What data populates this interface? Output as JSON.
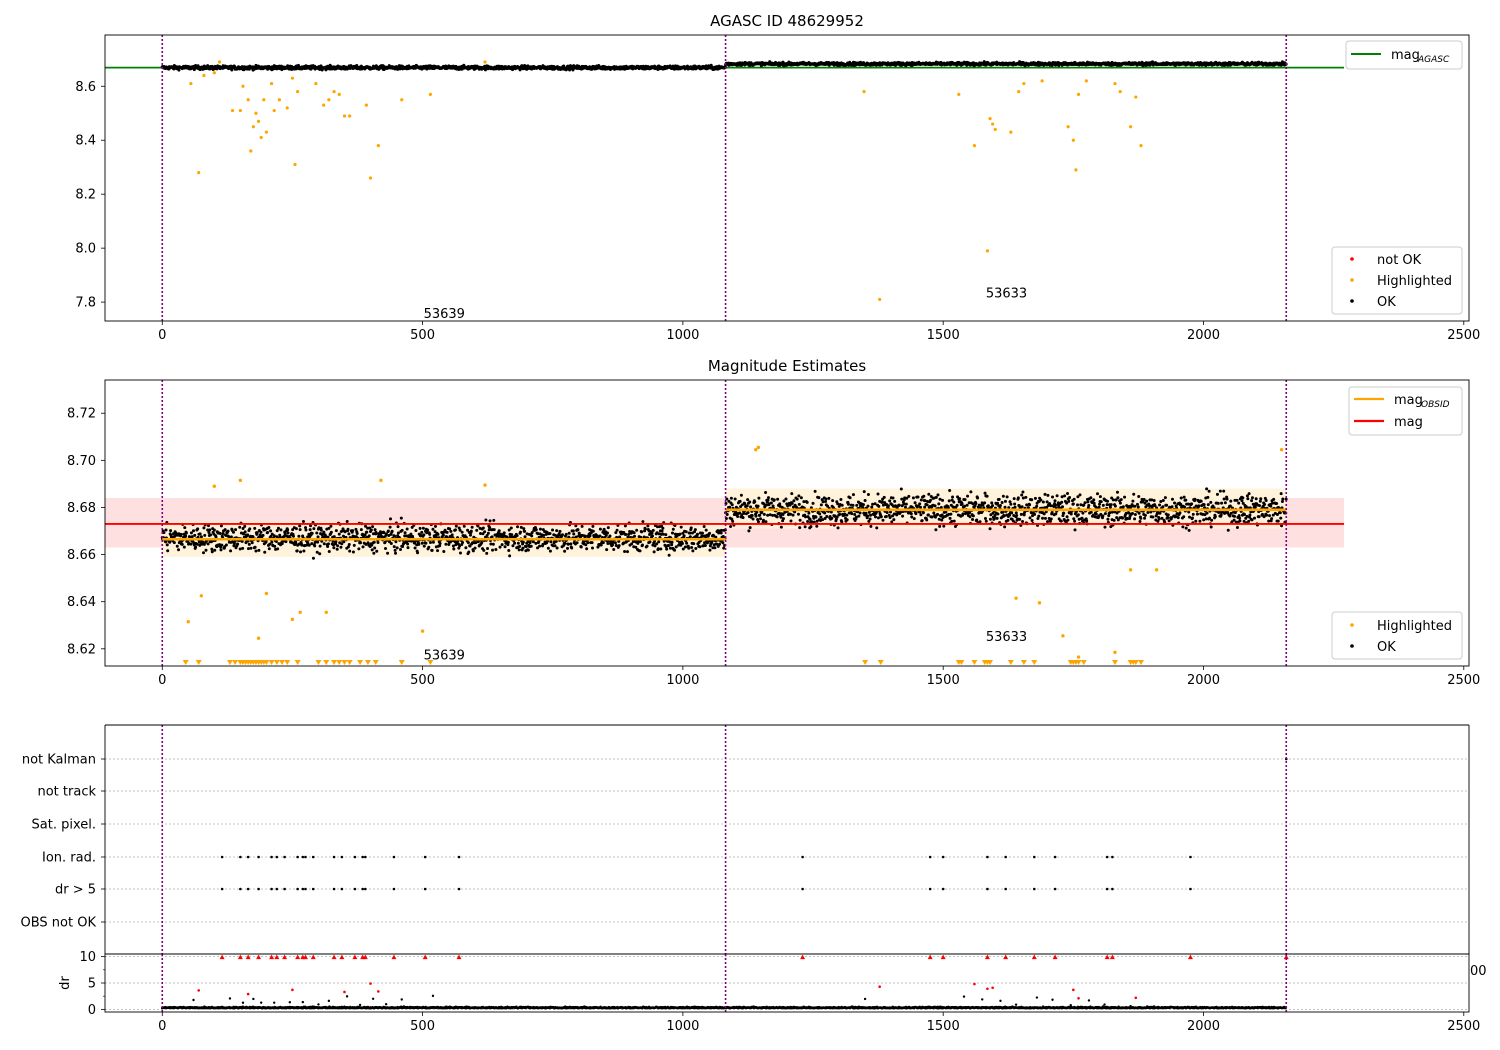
{
  "chart_data": [
    {
      "type": "scatter",
      "title": "AGASC ID 48629952",
      "xlim": [
        -110,
        2510
      ],
      "ylim": [
        7.73,
        8.79
      ],
      "xticks": [
        0,
        500,
        1000,
        1500,
        2000,
        2500
      ],
      "yticks": [
        7.8,
        8.0,
        8.2,
        8.4,
        8.6
      ],
      "obsid_boundaries": [
        0,
        1082,
        2159
      ],
      "obsid_labels": [
        {
          "text": "53639",
          "x": 500,
          "y": 7.76
        },
        {
          "text": "53633",
          "x": 1580,
          "y": 7.835
        }
      ],
      "legend_lines": [
        {
          "label": "mag",
          "sub": "AGASC",
          "color": "#008000"
        }
      ],
      "legend_points": [
        {
          "label": "not OK",
          "color": "#ff0000"
        },
        {
          "label": "Highlighted",
          "color": "#ffa500"
        },
        {
          "label": "OK",
          "color": "#000000"
        }
      ],
      "mag_agasc": 8.669,
      "ok_band": [
        {
          "x0": 0,
          "x1": 1082,
          "center": 8.669,
          "spread": 0.012
        },
        {
          "x0": 1082,
          "x1": 2159,
          "center": 8.683,
          "spread": 0.01
        }
      ],
      "highlighted_points": [
        [
          55,
          8.61
        ],
        [
          70,
          8.28
        ],
        [
          80,
          8.64
        ],
        [
          100,
          8.65
        ],
        [
          110,
          8.69
        ],
        [
          135,
          8.51
        ],
        [
          150,
          8.51
        ],
        [
          155,
          8.6
        ],
        [
          165,
          8.55
        ],
        [
          170,
          8.36
        ],
        [
          175,
          8.45
        ],
        [
          180,
          8.5
        ],
        [
          185,
          8.47
        ],
        [
          190,
          8.41
        ],
        [
          195,
          8.55
        ],
        [
          200,
          8.43
        ],
        [
          210,
          8.61
        ],
        [
          215,
          8.51
        ],
        [
          225,
          8.55
        ],
        [
          240,
          8.52
        ],
        [
          250,
          8.63
        ],
        [
          255,
          8.31
        ],
        [
          260,
          8.58
        ],
        [
          295,
          8.61
        ],
        [
          310,
          8.53
        ],
        [
          320,
          8.55
        ],
        [
          330,
          8.58
        ],
        [
          340,
          8.57
        ],
        [
          350,
          8.49
        ],
        [
          360,
          8.49
        ],
        [
          392,
          8.53
        ],
        [
          400,
          8.26
        ],
        [
          415,
          8.38
        ],
        [
          460,
          8.55
        ],
        [
          515,
          8.57
        ],
        [
          620,
          8.69
        ],
        [
          1348,
          8.58
        ],
        [
          1378,
          7.81
        ],
        [
          1530,
          8.57
        ],
        [
          1560,
          8.38
        ],
        [
          1585,
          7.99
        ],
        [
          1590,
          8.48
        ],
        [
          1595,
          8.46
        ],
        [
          1600,
          8.44
        ],
        [
          1630,
          8.43
        ],
        [
          1645,
          8.58
        ],
        [
          1655,
          8.61
        ],
        [
          1690,
          8.62
        ],
        [
          1740,
          8.45
        ],
        [
          1750,
          8.4
        ],
        [
          1755,
          8.29
        ],
        [
          1760,
          8.57
        ],
        [
          1775,
          8.62
        ],
        [
          1830,
          8.61
        ],
        [
          1840,
          8.58
        ],
        [
          1860,
          8.45
        ],
        [
          1870,
          8.56
        ],
        [
          1880,
          8.38
        ]
      ]
    },
    {
      "type": "scatter",
      "title": "Magnitude Estimates",
      "xlim": [
        -110,
        2510
      ],
      "ylim": [
        8.6127,
        8.7341
      ],
      "xticks": [
        0,
        500,
        1000,
        1500,
        2000,
        2500
      ],
      "yticks": [
        8.62,
        8.64,
        8.66,
        8.68,
        8.7,
        8.72
      ],
      "obsid_boundaries": [
        0,
        1082,
        2159
      ],
      "obsid_labels": [
        {
          "text": "53639",
          "x": 500,
          "y": 8.6175
        },
        {
          "text": "53633",
          "x": 1580,
          "y": 8.6255
        }
      ],
      "legend_lines": [
        {
          "label": "mag",
          "sub": "OBSID",
          "color": "#ffa500"
        },
        {
          "label": "mag",
          "sub": "",
          "color": "#ff0000"
        }
      ],
      "legend_points": [
        {
          "label": "Highlighted",
          "color": "#ffa500"
        },
        {
          "label": "OK",
          "color": "#000000"
        }
      ],
      "mag": 8.673,
      "mag_band": [
        8.663,
        8.684
      ],
      "mag_obsid": [
        {
          "x0": 0,
          "x1": 1082,
          "value": 8.6665,
          "band": [
            8.659,
            8.674
          ]
        },
        {
          "x0": 1082,
          "x1": 2159,
          "value": 8.679,
          "band": [
            8.671,
            8.688
          ]
        }
      ],
      "ok_band": [
        {
          "x0": 0,
          "x1": 1082,
          "center": 8.667,
          "spread": 0.007
        },
        {
          "x0": 1082,
          "x1": 2159,
          "center": 8.679,
          "spread": 0.008
        }
      ],
      "highlighted_points": [
        [
          50,
          8.6315
        ],
        [
          75,
          8.6425
        ],
        [
          100,
          8.689
        ],
        [
          150,
          8.6915
        ],
        [
          185,
          8.6245
        ],
        [
          200,
          8.6435
        ],
        [
          250,
          8.6325
        ],
        [
          265,
          8.6355
        ],
        [
          315,
          8.6355
        ],
        [
          420,
          8.6915
        ],
        [
          500,
          8.6275
        ],
        [
          620,
          8.6895
        ],
        [
          1140,
          8.7045
        ],
        [
          1145,
          8.7055
        ],
        [
          1640,
          8.6415
        ],
        [
          1685,
          8.6395
        ],
        [
          1730,
          8.6255
        ],
        [
          1760,
          8.6165
        ],
        [
          1830,
          8.6185
        ],
        [
          1860,
          8.6535
        ],
        [
          1910,
          8.6535
        ],
        [
          2150,
          8.7045
        ]
      ],
      "clipped_markers_x": [
        45,
        70,
        130,
        140,
        150,
        155,
        160,
        165,
        170,
        175,
        180,
        185,
        190,
        195,
        200,
        210,
        220,
        230,
        240,
        260,
        300,
        315,
        330,
        340,
        350,
        360,
        380,
        395,
        410,
        460,
        515,
        1350,
        1380,
        1530,
        1535,
        1560,
        1580,
        1585,
        1590,
        1630,
        1655,
        1675,
        1745,
        1750,
        1755,
        1760,
        1770,
        1830,
        1860,
        1865,
        1870,
        1880
      ]
    },
    {
      "type": "scatter",
      "title": "",
      "xlim": [
        -110,
        2510
      ],
      "categories": [
        "not Kalman",
        "not track",
        "Sat. pixel.",
        "Ion. rad.",
        "dr > 5",
        "OBS not OK"
      ],
      "obsid_boundaries": [
        0,
        1082,
        2159
      ],
      "flag_x": [
        115,
        150,
        165,
        185,
        210,
        220,
        235,
        260,
        270,
        275,
        290,
        330,
        345,
        370,
        385,
        390,
        445,
        505,
        570,
        1230,
        1475,
        1500,
        1585,
        1620,
        1675,
        1715,
        1815,
        1825,
        1975
      ],
      "stray_labels": [
        "00"
      ]
    },
    {
      "type": "scatter",
      "title": "",
      "xlim": [
        -110,
        2510
      ],
      "ylim": [
        -0.5,
        10.5
      ],
      "ylabel": "dr",
      "yticks": [
        0,
        5,
        10
      ],
      "xticks": [
        0,
        500,
        1000,
        1500,
        2000,
        2500
      ],
      "obsid_boundaries": [
        0,
        1082,
        2159
      ],
      "clipped_x": [
        115,
        150,
        165,
        185,
        210,
        220,
        235,
        260,
        270,
        275,
        290,
        330,
        345,
        370,
        385,
        390,
        445,
        505,
        570,
        1230,
        1475,
        1500,
        1585,
        1620,
        1675,
        1715,
        1815,
        1825,
        1975,
        2159
      ],
      "outliers": [
        [
          70,
          3.6
        ],
        [
          165,
          2.9
        ],
        [
          250,
          3.7
        ],
        [
          350,
          3.3
        ],
        [
          400,
          4.9
        ],
        [
          415,
          3.4
        ],
        [
          1378,
          4.3
        ],
        [
          1560,
          4.8
        ],
        [
          1585,
          3.9
        ],
        [
          1595,
          4.1
        ],
        [
          1750,
          3.7
        ],
        [
          1760,
          2.1
        ],
        [
          1870,
          2.2
        ]
      ],
      "scatter_x": [
        60,
        130,
        155,
        175,
        190,
        215,
        245,
        270,
        300,
        320,
        355,
        380,
        405,
        430,
        460,
        520,
        1350,
        1540,
        1575,
        1610,
        1640,
        1680,
        1710,
        1745,
        1780,
        1810,
        1860
      ],
      "baseline": 0.25
    }
  ],
  "colors": {
    "ok": "#000000",
    "highlighted": "#ffa500",
    "not_ok": "#ff0000",
    "agasc_line": "#008000",
    "mag_line": "#ff0000",
    "obsid_line": "#ffa500",
    "boundary": "#800080",
    "mag_band": "#ffe0e0",
    "obsid_band": "#fff2d8",
    "grid": "#b0b0b0"
  }
}
